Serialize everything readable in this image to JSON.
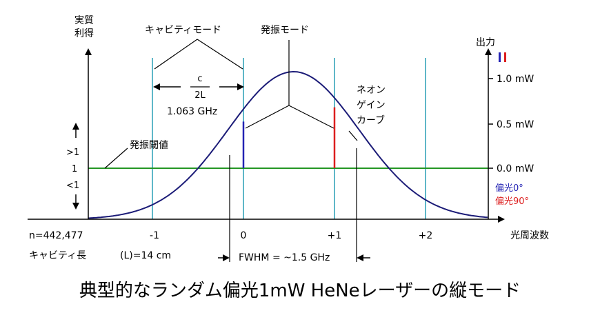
{
  "left_axis": {
    "title_line1": "実質",
    "title_line2": "利得",
    "gt1": ">1",
    "one": "1",
    "lt1": "<1"
  },
  "right_axis": {
    "title": "出力",
    "ticks": [
      "1.0 mW",
      "0.5 mW",
      "0.0 mW"
    ]
  },
  "x_axis": {
    "title": "光周波数",
    "ticks": [
      "-1",
      "0",
      "+1",
      "+2"
    ]
  },
  "labels": {
    "cavity_modes": "キャビティモード",
    "oscillating_modes": "発振モード",
    "c_over_2l_num": "c",
    "c_over_2l_den": "2L",
    "spacing": "1.063 GHz",
    "threshold": "発振閾値",
    "neon_gain_curve": [
      "ネオン",
      "ゲイン",
      "カーブ"
    ],
    "n_value": "n=442,477",
    "cavity_length_label": "キャビティ長",
    "cavity_length_value": "(L)=14 cm",
    "fwhm": "FWHM = ~1.5 GHz"
  },
  "legend": {
    "pol0": "偏光0°",
    "pol90": "偏光90°",
    "pol0_color": "#2323b4",
    "pol90_color": "#dc1e1e"
  },
  "caption": "典型的なランダム偏光1mW HeNeレーザーの縦モード",
  "colors": {
    "gain_curve": "#1c1c78",
    "cavity_mode": "#5fb7c8",
    "threshold_line": "#239623"
  },
  "chart_data": {
    "type": "line",
    "x_units": "cavity mode index",
    "cavity_mode_positions": [
      -1,
      0,
      1,
      2
    ],
    "gain_curve_peak_x": 0.55,
    "oscillating_modes": [
      {
        "name": "偏光0°",
        "x": 0,
        "output_mw": 0.52
      },
      {
        "name": "偏光90°",
        "x": 1,
        "output_mw": 0.68
      }
    ],
    "mode_spacing_ghz": 1.063,
    "fwhm_ghz": 1.5,
    "cavity_length_cm": 14,
    "mode_number_n": 442477,
    "right_ylim_mw": [
      0,
      1.0
    ]
  }
}
